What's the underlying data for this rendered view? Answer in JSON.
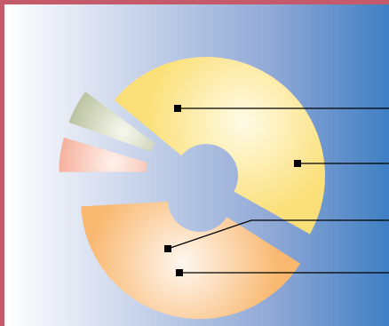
{
  "chart_data": {
    "type": "pie",
    "style": "exploded-donut",
    "labels_visible": false,
    "slices": [
      {
        "value": 0.48,
        "color": "#fbe07a",
        "highlight": "#fffbe6"
      },
      {
        "value": 0.41,
        "color": "#f9b870",
        "highlight": "#fff7f0"
      },
      {
        "value": 0.055,
        "color": "#f07e62",
        "highlight": "#fff2ec"
      },
      {
        "value": 0.055,
        "color": "#8f9a65",
        "highlight": "#f7f8ee"
      }
    ],
    "leader_color": "#000000",
    "background_colors": [
      "#ffffff",
      "#3f7fc4"
    ],
    "frame_color": "#c55a6a"
  }
}
